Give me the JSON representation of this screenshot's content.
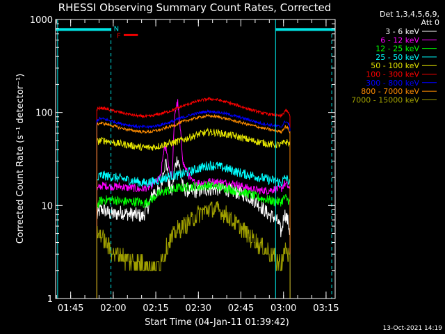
{
  "chart_data": {
    "type": "line",
    "title": "RHESSI Observing Summary Count Rates, Corrected",
    "xlabel": "Start Time (04-Jan-11 01:39:42)",
    "ylabel": "Corrected Count Rate (s⁻¹ detector⁻¹)",
    "ylog": true,
    "ylim": [
      1,
      1000
    ],
    "xlim_min": [
      0,
      98.5
    ],
    "x_ticks": [
      {
        "label": "01:45",
        "min": 5.3
      },
      {
        "label": "02:00",
        "min": 20.3
      },
      {
        "label": "02:15",
        "min": 35.3
      },
      {
        "label": "02:30",
        "min": 50.3
      },
      {
        "label": "02:45",
        "min": 65.3
      },
      {
        "label": "03:00",
        "min": 80.3
      },
      {
        "label": "03:15",
        "min": 95.3
      }
    ],
    "y_ticks": [
      {
        "label": "1",
        "value": 1
      },
      {
        "label": "10",
        "value": 10
      },
      {
        "label": "100",
        "value": 100
      },
      {
        "label": "1000",
        "value": 1000
      }
    ],
    "legend_header": [
      "Det 1,3,4,5,6,9,",
      "Att 0"
    ],
    "legend_position": "right",
    "night_bars": [
      {
        "label": "N",
        "x0": 0,
        "x1": 19.5,
        "y": 780,
        "color": "#00e5e5"
      },
      {
        "label": "",
        "x0": 77.5,
        "x1": 98.5,
        "y": 780,
        "color": "#00e5e5"
      }
    ],
    "night_lines_solid": [
      0.7,
      77.5
    ],
    "night_lines_dashed": [
      19.5,
      97.3
    ],
    "flare": {
      "label": "F",
      "x0": 24,
      "x1": 29,
      "y": 680,
      "color": "#ee0000"
    },
    "x_knots": [
      14.5,
      15.6,
      17.0,
      19.0,
      21.0,
      23.0,
      25.0,
      27.0,
      29.0,
      30.5,
      31.5,
      32.5,
      33.5,
      34.5,
      35.5,
      37.0,
      38.0,
      39.0,
      40.0,
      41.0,
      42.0,
      43.0,
      45.0,
      48.0,
      51.0,
      54.0,
      57.0,
      60.0,
      63.0,
      66.0,
      69.0,
      72.0,
      75.0,
      77.0,
      78.5,
      79.5,
      80.5,
      81.0,
      82.0,
      82.6
    ],
    "series": [
      {
        "name": "3 - 6 keV",
        "color": "#ffffff",
        "values": [
          7.5,
          9.0,
          9.0,
          8.2,
          8.0,
          8.5,
          8.2,
          8.0,
          8.0,
          7.5,
          8.5,
          9.5,
          11.5,
          14.0,
          14.0,
          14.0,
          25.0,
          30.0,
          16.0,
          14.0,
          25.0,
          33.0,
          15.0,
          14.0,
          14.5,
          15.0,
          15.0,
          15.0,
          14.0,
          13.5,
          12.0,
          10.0,
          8.0,
          7.5,
          6.5,
          5.0,
          8.0,
          8.0,
          6.5,
          5.0
        ]
      },
      {
        "name": "6 - 12 keV",
        "color": "#ff00ff",
        "values": [
          14.5,
          16.0,
          16.5,
          16.0,
          16.0,
          16.0,
          15.5,
          15.5,
          15.0,
          15.0,
          15.5,
          15.5,
          16.0,
          17.5,
          18.0,
          20.0,
          38.0,
          42.0,
          25.0,
          20.0,
          100.0,
          130.0,
          28.0,
          18.0,
          17.5,
          18.0,
          18.0,
          17.5,
          17.0,
          16.0,
          15.0,
          14.5,
          14.5,
          15.0,
          15.0,
          15.0,
          17.0,
          17.0,
          16.0,
          14.0
        ]
      },
      {
        "name": "12 - 25 keV",
        "color": "#00ff00",
        "values": [
          10.0,
          11.0,
          11.5,
          11.5,
          11.5,
          11.0,
          11.0,
          11.0,
          11.0,
          10.5,
          10.5,
          11.0,
          11.5,
          12.0,
          13.0,
          13.5,
          14.0,
          14.5,
          14.5,
          14.5,
          15.0,
          15.5,
          15.5,
          16.0,
          16.0,
          16.5,
          16.0,
          15.5,
          14.5,
          14.0,
          13.0,
          12.0,
          11.5,
          11.0,
          11.0,
          11.0,
          12.0,
          12.0,
          11.5,
          10.5
        ]
      },
      {
        "name": "25 - 50 keV",
        "color": "#00ffff",
        "values": [
          18.0,
          21.0,
          21.0,
          20.5,
          20.0,
          19.5,
          19.0,
          18.5,
          18.0,
          17.5,
          17.5,
          17.5,
          18.0,
          18.0,
          18.5,
          19.0,
          19.5,
          20.0,
          20.5,
          21.0,
          21.0,
          21.0,
          22.0,
          23.5,
          25.5,
          27.0,
          26.5,
          25.0,
          23.5,
          22.0,
          21.0,
          20.0,
          19.0,
          18.5,
          18.0,
          17.5,
          19.0,
          20.0,
          18.5,
          17.0
        ]
      },
      {
        "name": "50 - 100 keV",
        "color": "#e5e500",
        "values": [
          48.0,
          50.0,
          50.0,
          49.0,
          47.0,
          46.0,
          45.0,
          44.0,
          43.0,
          42.0,
          42.0,
          42.0,
          42.0,
          42.5,
          43.0,
          44.0,
          45.0,
          46.0,
          46.5,
          47.0,
          48.0,
          49.0,
          51.0,
          55.0,
          59.0,
          61.5,
          60.5,
          58.0,
          56.0,
          53.0,
          50.0,
          48.0,
          46.0,
          45.0,
          45.0,
          45.0,
          47.5,
          48.5,
          47.0,
          45.0
        ]
      },
      {
        "name": "100 - 300 keV",
        "color": "#ff0000",
        "values": [
          108.0,
          112.0,
          111.0,
          107.0,
          103.0,
          100.0,
          97.0,
          94.0,
          92.0,
          91.0,
          91.0,
          91.0,
          91.5,
          93.0,
          95.0,
          97.0,
          99.0,
          101.0,
          103.0,
          105.0,
          108.0,
          112.0,
          118.0,
          127.0,
          135.0,
          140.0,
          137.0,
          130.0,
          122.0,
          114.0,
          107.0,
          100.0,
          96.0,
          94.0,
          92.0,
          91.0,
          100.0,
          106.0,
          100.0,
          90.0
        ]
      },
      {
        "name": "300 - 800 keV",
        "color": "#0000ff",
        "values": [
          82.0,
          86.0,
          85.0,
          82.0,
          79.0,
          76.0,
          74.0,
          72.0,
          70.5,
          70.0,
          70.0,
          70.0,
          70.0,
          71.0,
          72.0,
          73.5,
          75.0,
          76.5,
          78.0,
          80.0,
          82.0,
          85.0,
          89.0,
          95.0,
          100.0,
          103.0,
          101.0,
          97.0,
          92.0,
          87.0,
          82.0,
          77.0,
          74.0,
          72.0,
          71.0,
          70.0,
          77.0,
          81.0,
          76.0,
          68.0
        ]
      },
      {
        "name": "800 - 7000 keV",
        "color": "#ff8c00",
        "values": [
          74.0,
          77.0,
          76.0,
          73.5,
          71.0,
          68.0,
          66.0,
          64.0,
          63.0,
          62.0,
          62.0,
          62.0,
          62.0,
          63.0,
          64.0,
          65.5,
          67.0,
          68.5,
          70.0,
          71.5,
          73.0,
          76.0,
          80.0,
          85.0,
          89.5,
          92.0,
          90.0,
          86.0,
          81.0,
          77.0,
          73.0,
          69.0,
          66.0,
          64.0,
          63.0,
          62.0,
          68.0,
          71.0,
          67.0,
          60.0
        ]
      },
      {
        "name": "7000 - 15000 keV",
        "color": "#a0a000",
        "values": [
          4.8,
          5.0,
          4.2,
          3.5,
          3.0,
          3.0,
          2.6,
          2.5,
          2.5,
          2.5,
          2.4,
          2.3,
          2.2,
          2.1,
          2.2,
          2.6,
          3.0,
          3.5,
          4.0,
          4.5,
          5.0,
          5.5,
          6.0,
          7.0,
          8.5,
          9.2,
          9.0,
          8.0,
          6.5,
          5.5,
          4.5,
          3.8,
          3.2,
          2.8,
          2.5,
          2.5,
          3.0,
          3.5,
          3.0,
          2.5
        ]
      }
    ],
    "timestamp": "13-Oct-2021 14:19"
  }
}
